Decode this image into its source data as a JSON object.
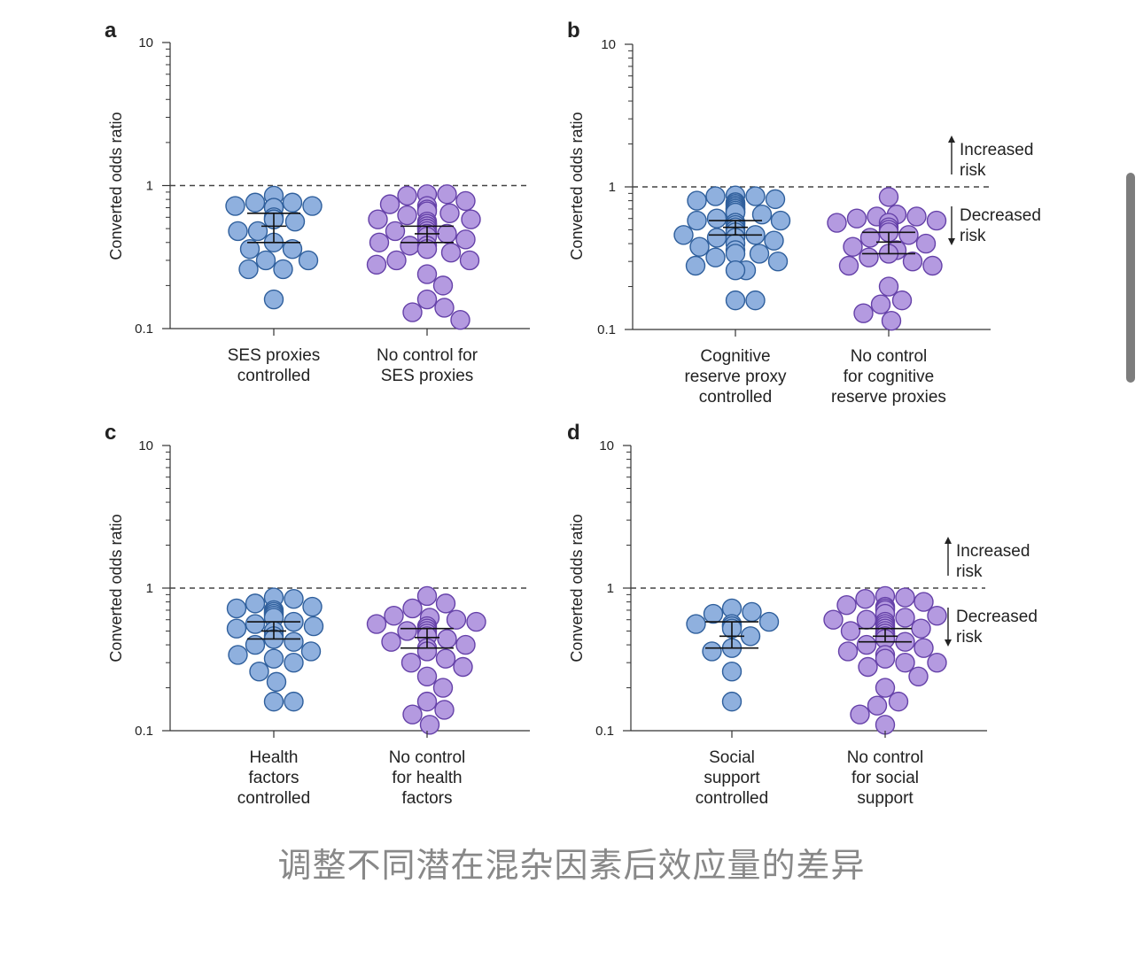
{
  "caption": "调整不同潜在混杂因素后效应量的差异",
  "colors": {
    "blue_fill": "#8fb0de",
    "blue_stroke": "#2f5f9c",
    "purple_fill": "#b49ae0",
    "purple_stroke": "#6541a8",
    "axis": "#333333",
    "text": "#222222"
  },
  "chart_data": [
    {
      "type": "scatter",
      "panel_label": "a",
      "ylabel": "Converted odds ratio",
      "yscale": "log",
      "ylim": [
        0.1,
        10
      ],
      "yticks": [
        "10",
        "1",
        "0.1"
      ],
      "reference_line": 1,
      "annotations": [],
      "groups": [
        {
          "label": [
            "SES proxies",
            "controlled"
          ],
          "color": "blue",
          "mean": 0.52,
          "ci": [
            0.4,
            0.64
          ],
          "points": [
            0.85,
            0.76,
            0.76,
            0.72,
            0.72,
            0.7,
            0.7,
            0.6,
            0.58,
            0.58,
            0.56,
            0.48,
            0.48,
            0.4,
            0.36,
            0.36,
            0.3,
            0.3,
            0.26,
            0.26,
            0.16
          ]
        },
        {
          "label": [
            "No control for",
            "SES proxies"
          ],
          "color": "purple",
          "mean": 0.46,
          "ci": [
            0.4,
            0.52
          ],
          "points": [
            0.87,
            0.87,
            0.85,
            0.78,
            0.74,
            0.72,
            0.68,
            0.66,
            0.64,
            0.62,
            0.58,
            0.58,
            0.56,
            0.54,
            0.54,
            0.52,
            0.5,
            0.5,
            0.48,
            0.48,
            0.46,
            0.46,
            0.44,
            0.42,
            0.4,
            0.38,
            0.38,
            0.36,
            0.34,
            0.3,
            0.3,
            0.28,
            0.24,
            0.2,
            0.16,
            0.14,
            0.13,
            0.115
          ]
        }
      ]
    },
    {
      "type": "scatter",
      "panel_label": "b",
      "ylabel": "Converted odds ratio",
      "yscale": "log",
      "ylim": [
        0.1,
        10
      ],
      "yticks": [
        "10",
        "1",
        "0.1"
      ],
      "reference_line": 1,
      "annotations": [
        {
          "lines": [
            "Increased",
            "risk"
          ],
          "direction": "up"
        },
        {
          "lines": [
            "Decreased",
            "risk"
          ],
          "direction": "down"
        }
      ],
      "groups": [
        {
          "label": [
            "Cognitive",
            "reserve proxy",
            "controlled"
          ],
          "color": "blue",
          "mean": 0.52,
          "ci": [
            0.46,
            0.58
          ],
          "points": [
            0.87,
            0.86,
            0.86,
            0.82,
            0.8,
            0.78,
            0.76,
            0.74,
            0.72,
            0.7,
            0.7,
            0.68,
            0.66,
            0.66,
            0.64,
            0.6,
            0.58,
            0.58,
            0.56,
            0.56,
            0.54,
            0.52,
            0.5,
            0.5,
            0.48,
            0.46,
            0.46,
            0.44,
            0.44,
            0.42,
            0.4,
            0.38,
            0.36,
            0.34,
            0.34,
            0.32,
            0.3,
            0.28,
            0.26,
            0.26,
            0.16,
            0.16
          ]
        },
        {
          "label": [
            "No control",
            "for cognitive",
            "reserve proxies"
          ],
          "color": "purple",
          "mean": 0.41,
          "ci": [
            0.34,
            0.48
          ],
          "points": [
            0.85,
            0.64,
            0.62,
            0.62,
            0.6,
            0.58,
            0.56,
            0.56,
            0.52,
            0.5,
            0.48,
            0.46,
            0.44,
            0.4,
            0.38,
            0.36,
            0.34,
            0.32,
            0.3,
            0.28,
            0.28,
            0.2,
            0.16,
            0.15,
            0.13,
            0.115
          ]
        }
      ]
    },
    {
      "type": "scatter",
      "panel_label": "c",
      "ylabel": "Converted odds ratio",
      "yscale": "log",
      "ylim": [
        0.1,
        10
      ],
      "yticks": [
        "10",
        "1",
        "0.1"
      ],
      "reference_line": 1,
      "annotations": [],
      "groups": [
        {
          "label": [
            "Health",
            "factors",
            "controlled"
          ],
          "color": "blue",
          "mean": 0.5,
          "ci": [
            0.44,
            0.58
          ],
          "points": [
            0.86,
            0.84,
            0.78,
            0.74,
            0.72,
            0.7,
            0.68,
            0.66,
            0.64,
            0.62,
            0.58,
            0.56,
            0.54,
            0.52,
            0.5,
            0.46,
            0.44,
            0.42,
            0.4,
            0.36,
            0.34,
            0.32,
            0.3,
            0.26,
            0.22,
            0.16,
            0.16
          ]
        },
        {
          "label": [
            "No control",
            "for health",
            "factors"
          ],
          "color": "purple",
          "mean": 0.45,
          "ci": [
            0.38,
            0.52
          ],
          "points": [
            0.88,
            0.78,
            0.72,
            0.64,
            0.62,
            0.6,
            0.58,
            0.56,
            0.54,
            0.52,
            0.5,
            0.5,
            0.48,
            0.46,
            0.44,
            0.42,
            0.4,
            0.38,
            0.36,
            0.32,
            0.3,
            0.28,
            0.24,
            0.2,
            0.16,
            0.14,
            0.13,
            0.11
          ]
        }
      ]
    },
    {
      "type": "scatter",
      "panel_label": "d",
      "ylabel": "Converted odds ratio",
      "yscale": "log",
      "ylim": [
        0.1,
        10
      ],
      "yticks": [
        "10",
        "1",
        "0.1"
      ],
      "reference_line": 1,
      "annotations": [
        {
          "lines": [
            "Increased",
            "risk"
          ],
          "direction": "up"
        },
        {
          "lines": [
            "Decreased",
            "risk"
          ],
          "direction": "down"
        }
      ],
      "groups": [
        {
          "label": [
            "Social",
            "support",
            "controlled"
          ],
          "color": "blue",
          "mean": 0.46,
          "ci": [
            0.38,
            0.58
          ],
          "points": [
            0.72,
            0.68,
            0.66,
            0.58,
            0.56,
            0.56,
            0.54,
            0.54,
            0.52,
            0.46,
            0.38,
            0.36,
            0.26,
            0.16
          ]
        },
        {
          "label": [
            "No control",
            "for social",
            "support"
          ],
          "color": "purple",
          "mean": 0.46,
          "ci": [
            0.42,
            0.52
          ],
          "points": [
            0.88,
            0.86,
            0.84,
            0.8,
            0.76,
            0.74,
            0.72,
            0.7,
            0.66,
            0.64,
            0.62,
            0.6,
            0.6,
            0.58,
            0.56,
            0.54,
            0.52,
            0.52,
            0.5,
            0.5,
            0.48,
            0.48,
            0.46,
            0.46,
            0.44,
            0.42,
            0.4,
            0.38,
            0.36,
            0.34,
            0.32,
            0.3,
            0.3,
            0.28,
            0.24,
            0.2,
            0.16,
            0.15,
            0.13,
            0.11
          ]
        }
      ]
    }
  ]
}
